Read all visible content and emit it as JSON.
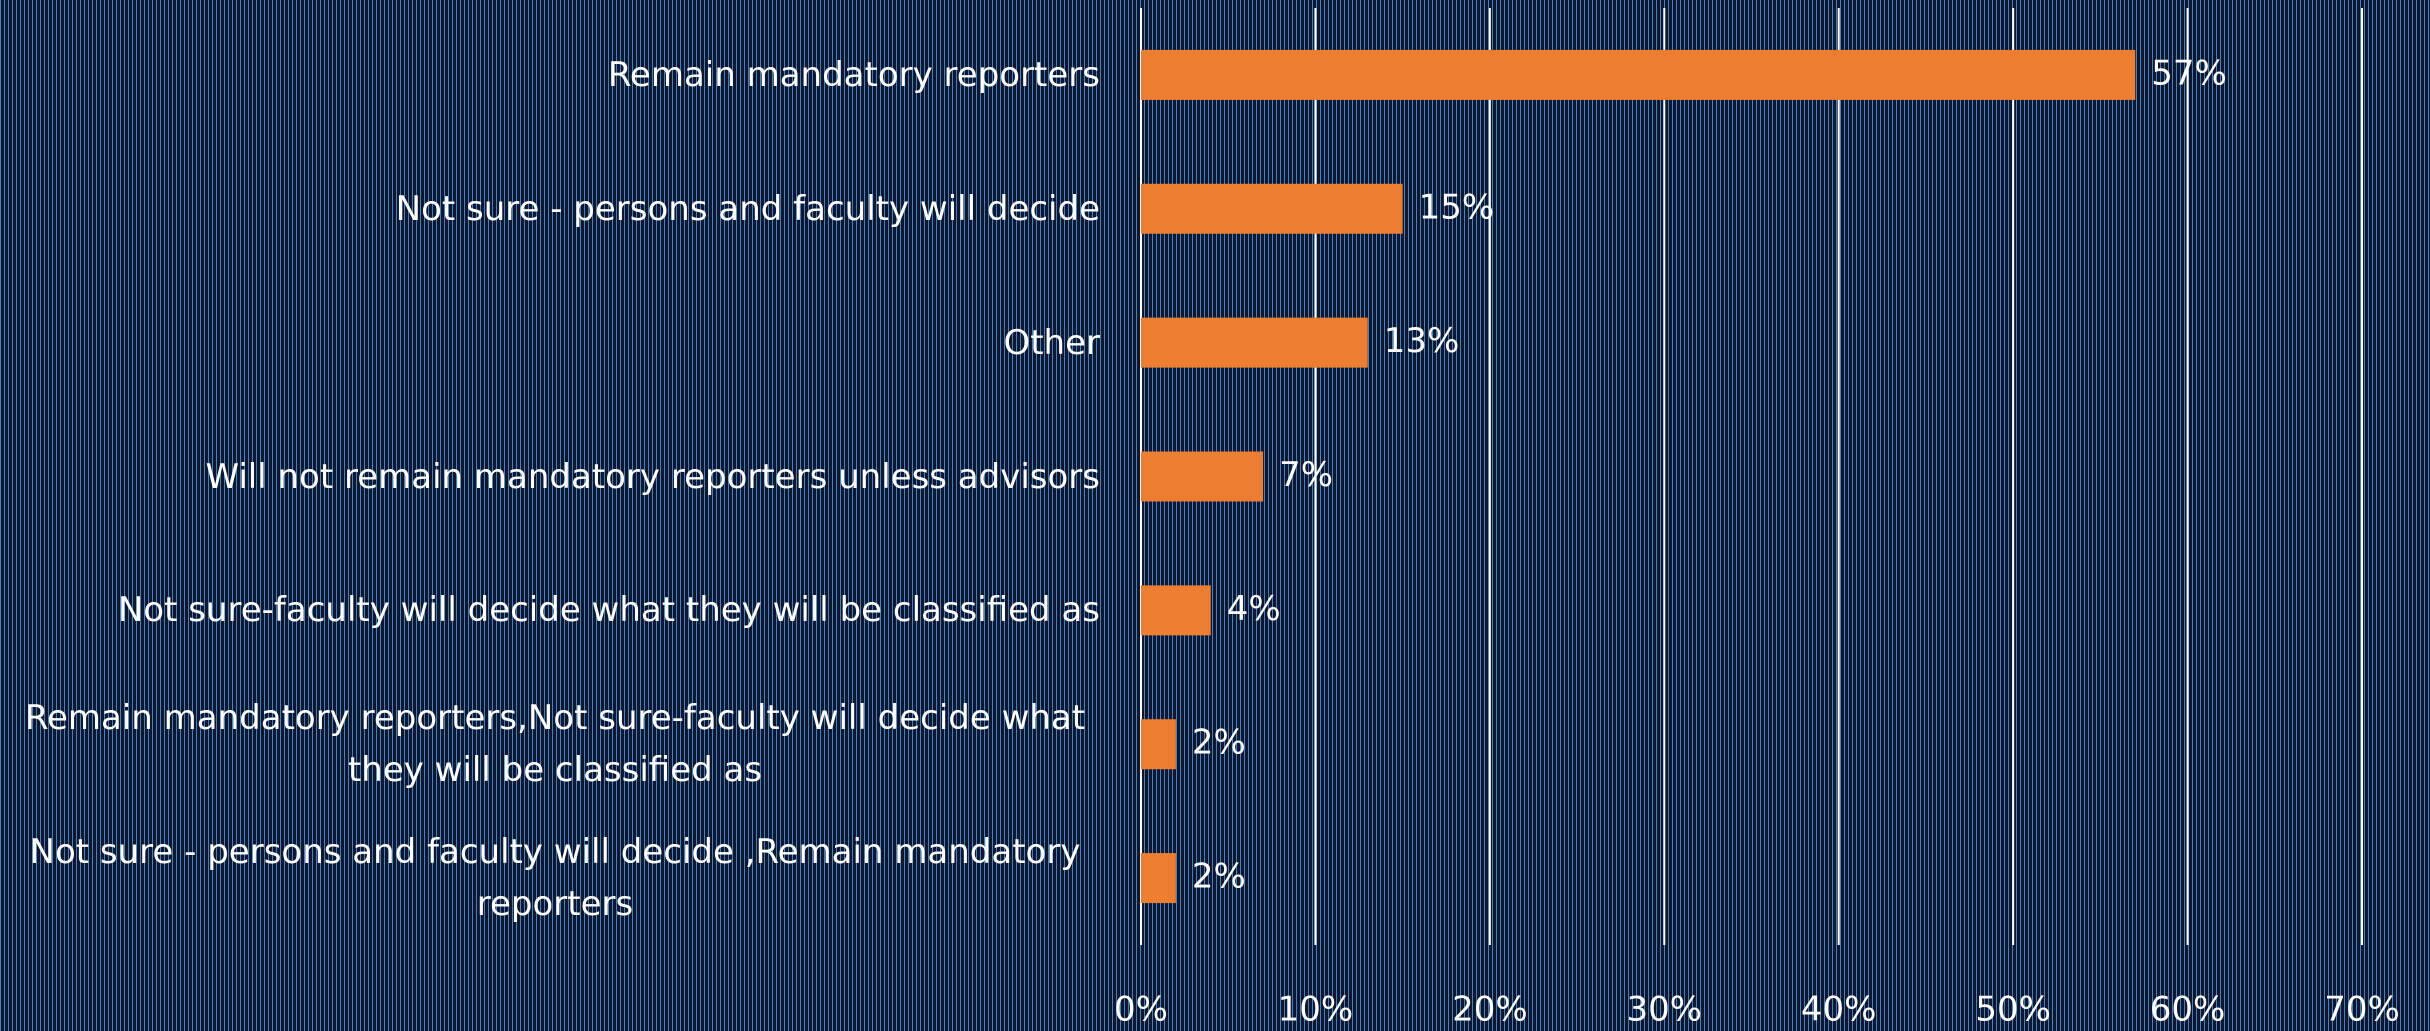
{
  "chart_data": {
    "type": "bar",
    "orientation": "horizontal",
    "categories": [
      "Remain mandatory reporters",
      "Not sure - persons and faculty will decide",
      "Other",
      "Will not remain mandatory reporters unless advisors",
      "Not sure-faculty will decide what they will be classified as",
      "Remain mandatory reporters,Not sure-faculty will decide what they will be classified as",
      "Not sure - persons and faculty will decide ,Remain mandatory reporters"
    ],
    "values": [
      57,
      15,
      13,
      7,
      4,
      2,
      2
    ],
    "value_labels": [
      "57%",
      "15%",
      "13%",
      "7%",
      "4%",
      "2%",
      "2%"
    ],
    "color": "#ed7d31",
    "xlim": [
      0,
      70
    ],
    "xticks": [
      {
        "value": 0,
        "label": "0%"
      },
      {
        "value": 10,
        "label": "10%"
      },
      {
        "value": 20,
        "label": "20%"
      },
      {
        "value": 30,
        "label": "30%"
      },
      {
        "value": 40,
        "label": "40%"
      },
      {
        "value": 50,
        "label": "50%"
      },
      {
        "value": 60,
        "label": "60%"
      },
      {
        "value": 70,
        "label": "70%"
      }
    ],
    "grid": true
  }
}
